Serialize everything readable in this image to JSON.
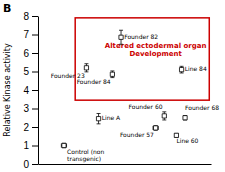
{
  "chart_data": {
    "type": "scatter",
    "title": "B",
    "ylabel": "Relative Kinase activity",
    "marker": "square",
    "color": "black",
    "tick_labels": "y",
    "xlim": [
      0,
      10
    ],
    "ylim": [
      0,
      8
    ],
    "xticks": [],
    "yticks": [
      0,
      1,
      2,
      3,
      4,
      5,
      6,
      7,
      8
    ],
    "point_labels": [
      "Control (non\ntransgenic)",
      "Founder 23",
      "Founder 82",
      "Founder 84",
      "Line 84",
      "Line A",
      "Founder 60",
      "Founder 68",
      "Founder 57",
      "Line 60"
    ],
    "x": [
      1.5,
      2.8,
      4.8,
      4.3,
      8.3,
      3.5,
      7.3,
      8.5,
      6.8,
      8.0
    ],
    "values": [
      1.0,
      5.2,
      6.85,
      4.85,
      5.1,
      2.45,
      2.6,
      2.5,
      1.95,
      1.55
    ],
    "y_errors": [
      0.12,
      0.22,
      0.38,
      0.18,
      0.18,
      0.28,
      0.22,
      0.12,
      0.12,
      0.1
    ],
    "x_errors": [
      0.15,
      0.0,
      0.0,
      0.0,
      0.0,
      0.0,
      0.0,
      0.0,
      0.15,
      0.0
    ],
    "annotations": [
      {
        "text": "Altered ectodermal organ\nDevelopment",
        "x": 6.8,
        "y": 6.2,
        "color": "#cc0000",
        "box": [
          2.15,
          3.45,
          9.9,
          7.9
        ]
      }
    ]
  }
}
